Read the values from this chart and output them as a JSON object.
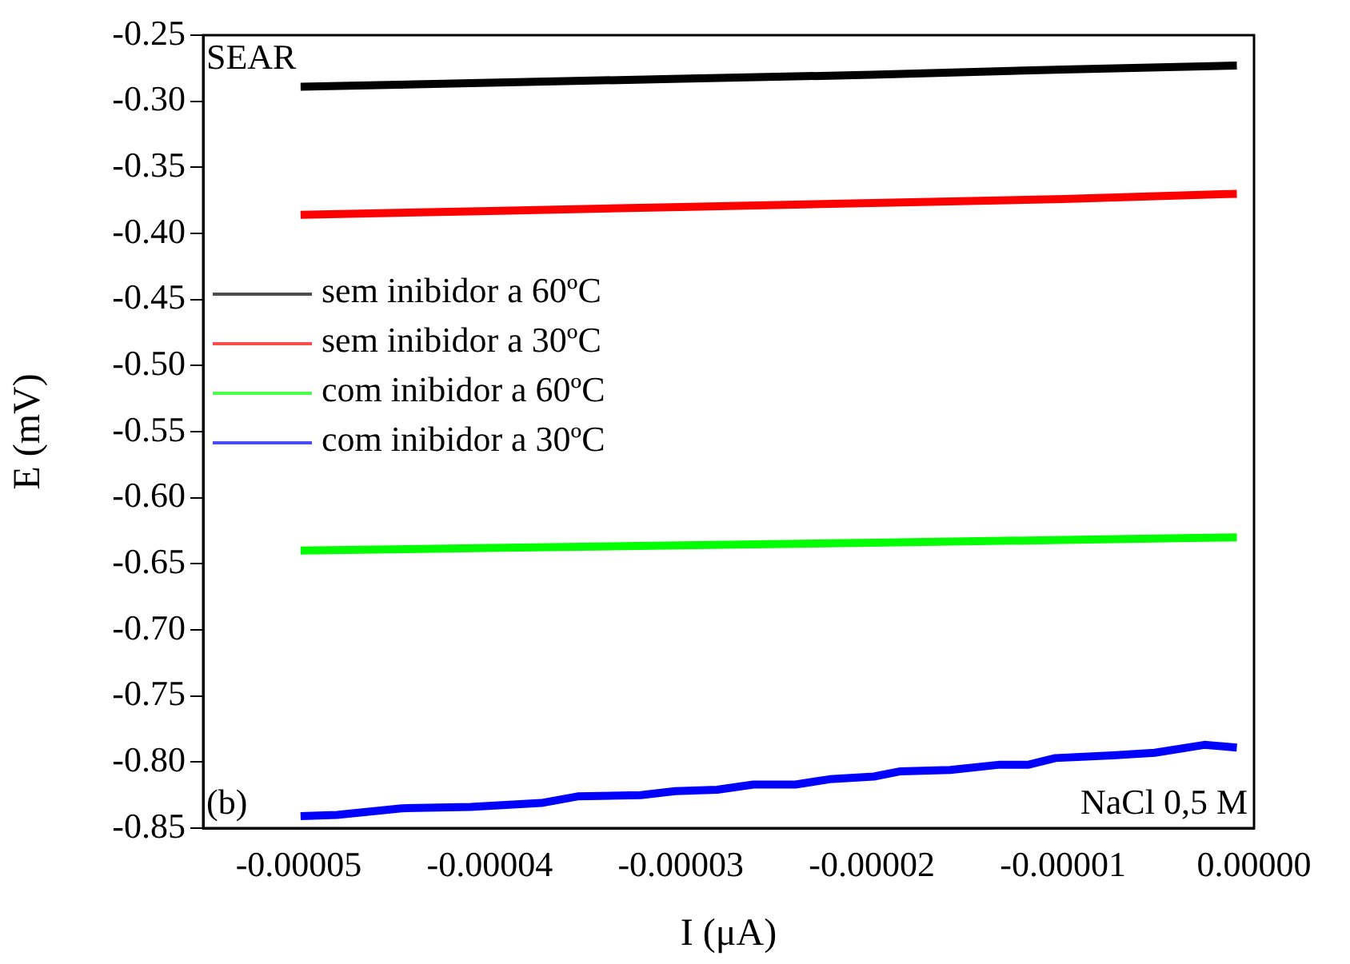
{
  "chart_data": {
    "type": "line",
    "xlabel": "I (μA)",
    "ylabel": "E (mV)",
    "xlim": [
      -5.5e-05,
      0
    ],
    "ylim": [
      -0.85,
      -0.25
    ],
    "xticks": [
      {
        "value": -5e-05,
        "label": "-0.00005"
      },
      {
        "value": -4e-05,
        "label": "-0.00004"
      },
      {
        "value": -3e-05,
        "label": "-0.00003"
      },
      {
        "value": -2e-05,
        "label": "-0.00002"
      },
      {
        "value": -1e-05,
        "label": "-0.00001"
      },
      {
        "value": 0,
        "label": "0.00000"
      }
    ],
    "yticks": [
      -0.25,
      {
        "value": -0.3,
        "label": "-0.30"
      },
      -0.35,
      {
        "value": -0.4,
        "label": "-0.40"
      },
      -0.45,
      {
        "value": -0.5,
        "label": "-0.50"
      },
      -0.55,
      {
        "value": -0.6,
        "label": "-0.60"
      },
      -0.65,
      {
        "value": -0.7,
        "label": "-0.70"
      },
      -0.75,
      {
        "value": -0.8,
        "label": "-0.80"
      },
      -0.85
    ],
    "grid": false,
    "legend": "left",
    "marker": "none",
    "line_style": "solid",
    "annotations": [
      "SEAR",
      "(b)",
      "NaCl 0,5 M"
    ],
    "series": [
      {
        "name": "sem inibidor a 60ºC",
        "color": "#000000",
        "x": [
          -4.99e-05,
          -4e-05,
          -3e-05,
          -2e-05,
          -1e-05,
          -9e-07
        ],
        "values": [
          -0.289,
          -0.286,
          -0.283,
          -0.28,
          -0.276,
          -0.273
        ]
      },
      {
        "name": "sem inibidor a 30ºC",
        "color": "#ff0000",
        "x": [
          -4.99e-05,
          -4e-05,
          -3e-05,
          -2e-05,
          -1e-05,
          -9e-07
        ],
        "values": [
          -0.386,
          -0.383,
          -0.38,
          -0.377,
          -0.374,
          -0.37
        ]
      },
      {
        "name": "com inibidor a 60ºC",
        "color": "#00ff00",
        "x": [
          -4.99e-05,
          -4e-05,
          -3e-05,
          -2e-05,
          -1e-05,
          -9e-07
        ],
        "values": [
          -0.64,
          -0.638,
          -0.636,
          -0.634,
          -0.632,
          -0.63
        ]
      },
      {
        "name": "com inibidor a 30ºC",
        "color": "#0000ff",
        "x": [
          -4.99e-05,
          -4.8e-05,
          -4.46e-05,
          -4.1e-05,
          -3.73e-05,
          -3.54e-05,
          -3.21e-05,
          -3.03e-05,
          -2.81e-05,
          -2.62e-05,
          -2.4e-05,
          -2.22e-05,
          -1.99e-05,
          -1.85e-05,
          -1.59e-05,
          -1.33e-05,
          -1.18e-05,
          -1.04e-05,
          -7.4e-06,
          -5.2e-06,
          -2.6e-06,
          -9e-07
        ],
        "values": [
          -0.841,
          -0.84,
          -0.835,
          -0.834,
          -0.831,
          -0.826,
          -0.825,
          -0.822,
          -0.821,
          -0.817,
          -0.817,
          -0.813,
          -0.811,
          -0.807,
          -0.806,
          -0.802,
          -0.802,
          -0.797,
          -0.795,
          -0.793,
          -0.787,
          -0.789
        ]
      }
    ]
  }
}
